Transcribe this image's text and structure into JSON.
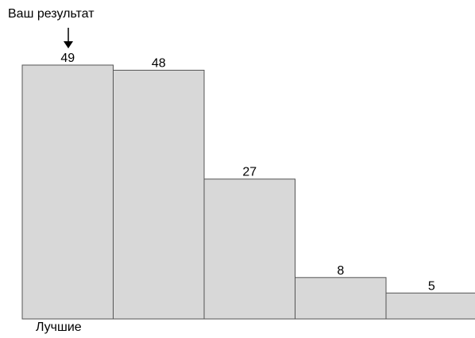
{
  "chart_data": {
    "type": "bar",
    "categories": [
      "",
      "",
      "",
      "",
      ""
    ],
    "values": [
      49,
      48,
      27,
      8,
      5
    ],
    "data_labels": [
      "49",
      "48",
      "27",
      "8",
      "5"
    ],
    "title": "",
    "xlabel": "",
    "ylabel": "",
    "ylim": [
      0,
      49
    ],
    "grid": false,
    "highlight_index": 0,
    "annotation": "Ваш результат",
    "bottom_label": "Лучшие",
    "colors": {
      "bar_fill": "#d8d8d8",
      "bar_stroke": "#555555",
      "text": "#000000"
    }
  }
}
